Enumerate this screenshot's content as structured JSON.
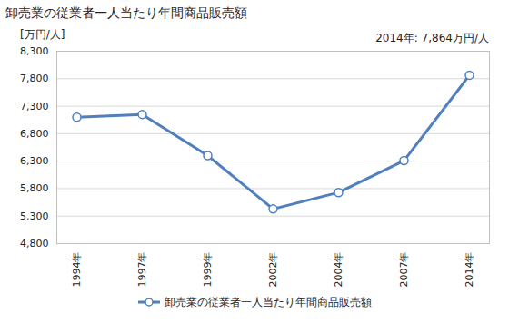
{
  "chart_data": {
    "type": "line",
    "title": "卸売業の従業者一人当たり年間商品販売額",
    "y_label": "[万円/人]",
    "annotation": "2014年: 7,864万円/人",
    "categories": [
      "1994年",
      "1997年",
      "1999年",
      "2002年",
      "2004年",
      "2007年",
      "2014年"
    ],
    "series": [
      {
        "name": "卸売業の従業者一人当たり年間商品販売額",
        "color": "#4f7fbd",
        "marker": "circle",
        "values": [
          7100,
          7150,
          6400,
          5430,
          5730,
          6310,
          7864
        ]
      }
    ],
    "ylim": [
      4800,
      8300
    ],
    "yticks": [
      {
        "value": 4800,
        "label": "4,800"
      },
      {
        "value": 5300,
        "label": "5,300"
      },
      {
        "value": 5800,
        "label": "5,800"
      },
      {
        "value": 6300,
        "label": "6,300"
      },
      {
        "value": 6800,
        "label": "6,800"
      },
      {
        "value": 7300,
        "label": "7,300"
      },
      {
        "value": 7800,
        "label": "7,800"
      },
      {
        "value": 8300,
        "label": "8,300"
      }
    ],
    "grid": true,
    "legend": "bottom"
  }
}
